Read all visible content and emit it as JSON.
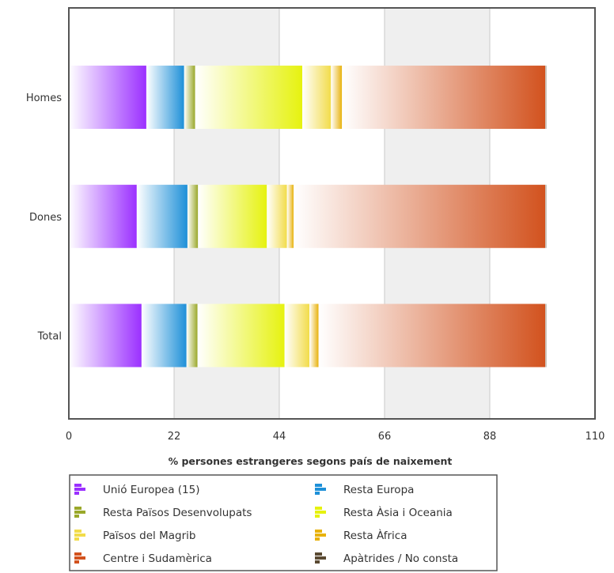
{
  "chart_data": {
    "type": "bar",
    "orientation": "horizontal",
    "stacked": true,
    "categories": [
      "Homes",
      "Dones",
      "Total"
    ],
    "xlabel": "% persones estrangeres segons país de naixement",
    "xlim": [
      0,
      110
    ],
    "xticks": [
      0,
      22,
      44,
      66,
      88,
      110
    ],
    "grid": "alternating vertical bands",
    "legend_position": "bottom",
    "series": [
      {
        "name": "Unió Europea (15)",
        "color": "#9b30ff",
        "values": [
          16.2,
          14.2,
          15.2
        ]
      },
      {
        "name": "Resta Europa",
        "color": "#1e90d8",
        "values": [
          7.9,
          10.6,
          9.4
        ]
      },
      {
        "name": "Resta Països Desenvolupats",
        "color": "#9aa82a",
        "values": [
          2.3,
          2.2,
          2.3
        ]
      },
      {
        "name": "Resta Àsia i Oceania",
        "color": "#e6f20f",
        "values": [
          22.4,
          14.4,
          18.2
        ]
      },
      {
        "name": "Països del Magrib",
        "color": "#f2dc4a",
        "values": [
          6.0,
          4.2,
          5.2
        ]
      },
      {
        "name": "Resta Àfrica",
        "color": "#e8b20c",
        "values": [
          2.3,
          1.4,
          1.9
        ]
      },
      {
        "name": "Centre i Sudamèrica",
        "color": "#d2521e",
        "values": [
          42.5,
          52.6,
          47.4
        ]
      },
      {
        "name": "Apàtrides / No consta",
        "color": "#5a4a32",
        "values": [
          0.2,
          0.2,
          0.2
        ]
      }
    ]
  }
}
